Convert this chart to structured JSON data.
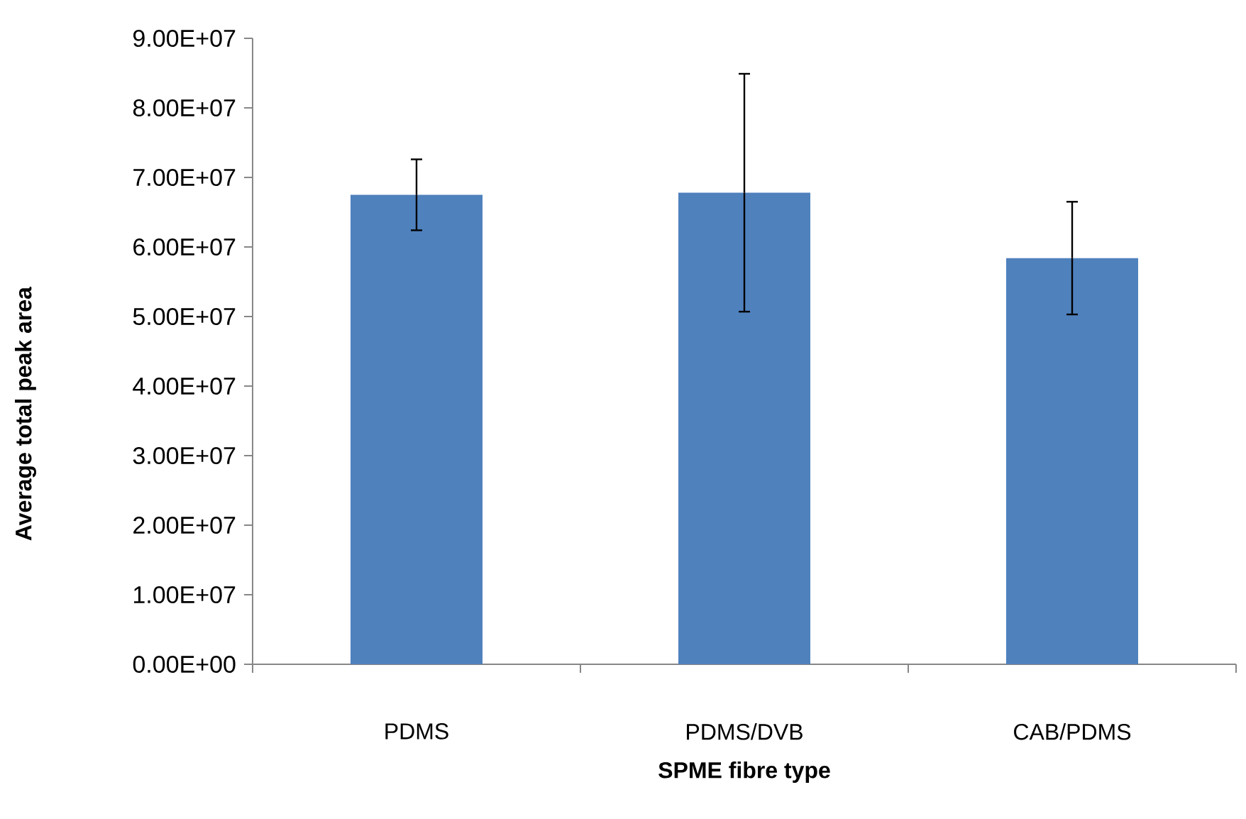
{
  "chart_data": {
    "type": "bar",
    "xlabel": "SPME fibre type",
    "ylabel": "Average total peak area",
    "categories": [
      "PDMS",
      "PDMS/DVB",
      "CAB/PDMS"
    ],
    "values": [
      67500000,
      67800000,
      58400000
    ],
    "errors": [
      5100000,
      17100000,
      8100000
    ],
    "color": "#4f81bd",
    "ylim": [
      0,
      90000000
    ],
    "yticks": [
      {
        "value": 0,
        "label": "0.00E+00"
      },
      {
        "value": 10000000,
        "label": "1.00E+07"
      },
      {
        "value": 20000000,
        "label": "2.00E+07"
      },
      {
        "value": 30000000,
        "label": "3.00E+07"
      },
      {
        "value": 40000000,
        "label": "4.00E+07"
      },
      {
        "value": 50000000,
        "label": "5.00E+07"
      },
      {
        "value": 60000000,
        "label": "6.00E+07"
      },
      {
        "value": 70000000,
        "label": "7.00E+07"
      },
      {
        "value": 80000000,
        "label": "8.00E+07"
      },
      {
        "value": 90000000,
        "label": "9.00E+07"
      }
    ]
  }
}
